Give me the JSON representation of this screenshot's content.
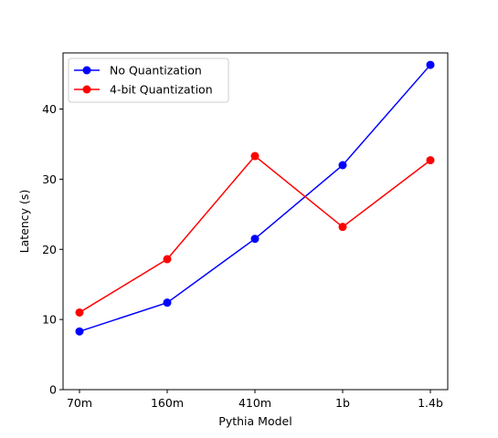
{
  "chart_data": {
    "type": "line",
    "title": "",
    "xlabel": "Pythia Model",
    "ylabel": "Latency (s)",
    "categories": [
      "70m",
      "160m",
      "410m",
      "1b",
      "1.4b"
    ],
    "series": [
      {
        "name": "No Quantization",
        "color": "#0000ff",
        "values": [
          8.3,
          12.4,
          21.5,
          32.0,
          46.3
        ]
      },
      {
        "name": "4-bit Quantization",
        "color": "#ff0000",
        "values": [
          11.0,
          18.6,
          33.3,
          23.2,
          32.7
        ]
      }
    ],
    "ylim": [
      0,
      48
    ],
    "yticks": [
      0,
      10,
      20,
      30,
      40
    ],
    "grid": false,
    "legend": "top-left"
  }
}
